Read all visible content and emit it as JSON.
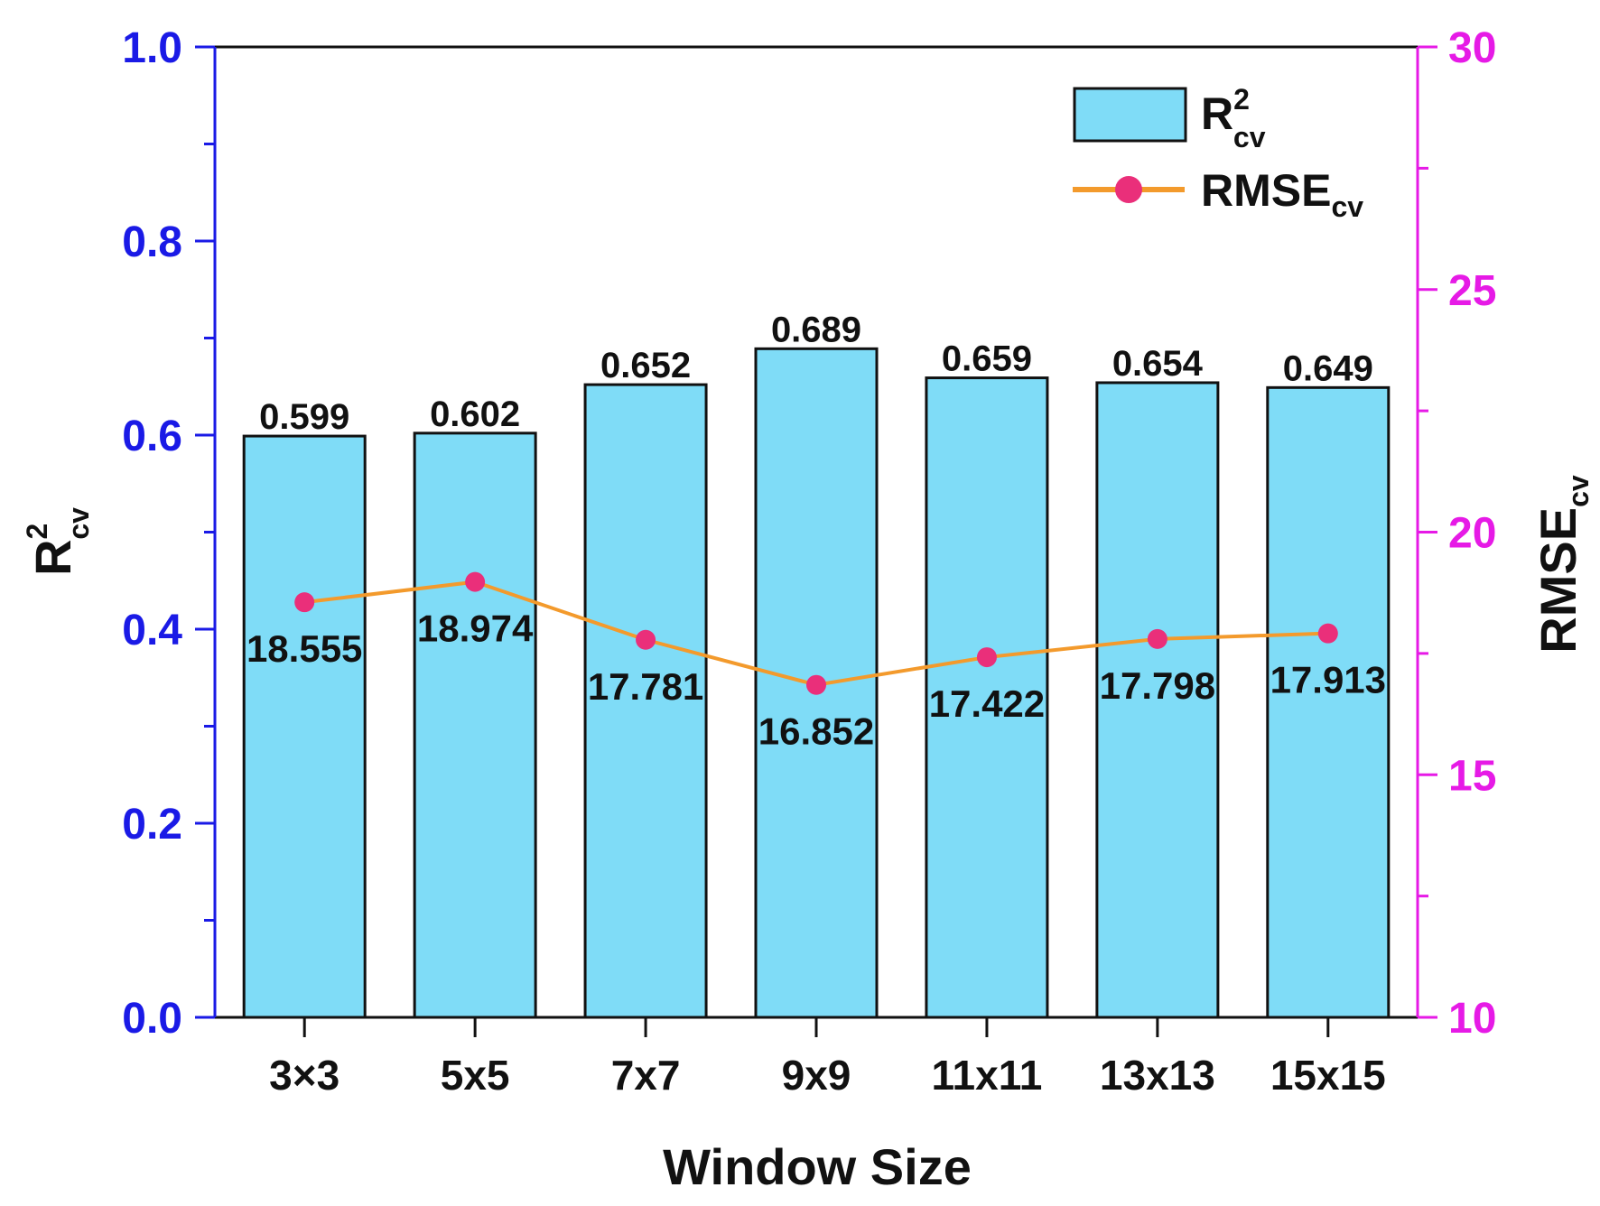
{
  "chart_data": {
    "type": "bar",
    "categories": [
      "3×3",
      "5x5",
      "7x7",
      "9x9",
      "11x11",
      "13x13",
      "15x15"
    ],
    "series": [
      {
        "name": "R2cv",
        "axis": "left",
        "type": "bar",
        "values": [
          0.599,
          0.602,
          0.652,
          0.689,
          0.659,
          0.654,
          0.649
        ],
        "labels": [
          "0.599",
          "0.602",
          "0.652",
          "0.689",
          "0.659",
          "0.654",
          "0.649"
        ]
      },
      {
        "name": "RMSEcv",
        "axis": "right",
        "type": "line",
        "values": [
          18.555,
          18.974,
          17.781,
          16.852,
          17.422,
          17.798,
          17.913
        ],
        "labels": [
          "18.555",
          "18.974",
          "17.781",
          "16.852",
          "17.422",
          "17.798",
          "17.913"
        ]
      }
    ],
    "xlabel": "Window Size",
    "ylabel_left": {
      "base": "R",
      "sup": "2",
      "sub": "cv"
    },
    "ylabel_right": {
      "base": "RMSE",
      "sub": "cv"
    },
    "ylim_left": [
      0.0,
      1.0
    ],
    "ylim_right": [
      10,
      30
    ],
    "yticks_left": [
      "0.0",
      "0.2",
      "0.4",
      "0.6",
      "0.8",
      "1.0"
    ],
    "yticks_right": [
      "10",
      "15",
      "20",
      "25",
      "30"
    ],
    "legend": {
      "placement": "top-right",
      "entries": [
        {
          "base": "R",
          "sup": "2",
          "sub": "cv"
        },
        {
          "base": "RMSE",
          "sub": "cv"
        }
      ]
    },
    "colors": {
      "bar_fill": "#7fdcf7",
      "bar_stroke": "#111111",
      "line": "#f39a2c",
      "marker": "#ea2f7a",
      "left_axis": "#1a1ae6",
      "right_axis": "#e61ae6",
      "frame": "#111111"
    }
  }
}
